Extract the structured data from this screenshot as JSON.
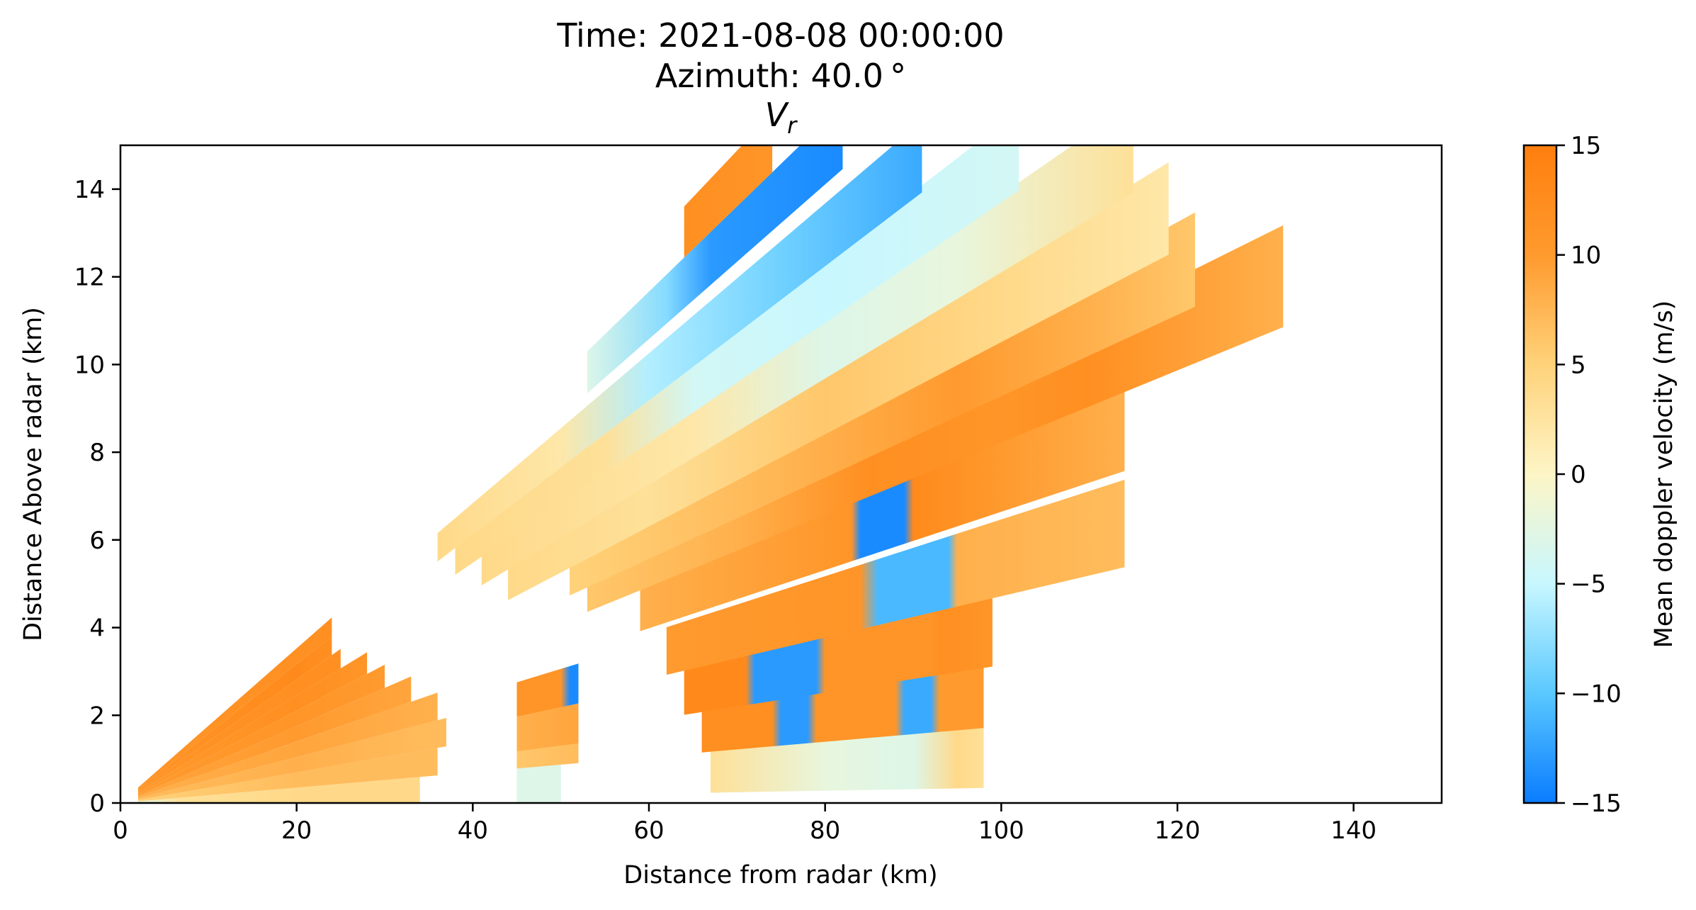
{
  "chart_data": {
    "type": "heatmap",
    "title_lines": [
      "Time: 2021-08-08 00:00:00",
      "Azimuth: 40.0 °",
      "V",
      "r"
    ],
    "xlabel": "Distance from radar (km)",
    "ylabel": "Distance Above radar  (km)",
    "xlim": [
      0,
      150
    ],
    "ylim": [
      0,
      15
    ],
    "xticks": [
      0,
      20,
      40,
      60,
      80,
      100,
      120,
      140
    ],
    "yticks": [
      0,
      2,
      4,
      6,
      8,
      10,
      12,
      14
    ],
    "xtick_labels": [
      "0",
      "20",
      "40",
      "60",
      "80",
      "100",
      "120",
      "140"
    ],
    "ytick_labels": [
      "0",
      "2",
      "4",
      "6",
      "8",
      "10",
      "12",
      "14"
    ],
    "colorbar": {
      "label": "Mean doppler velocity (m/s)",
      "vmin": -15,
      "vmax": 15,
      "ticks": [
        15,
        10,
        5,
        0,
        -5,
        -10,
        -15
      ],
      "tick_labels": [
        "15",
        "10",
        "5",
        "0",
        "−5",
        "−10",
        "−15"
      ],
      "colors": [
        "#0a7cff",
        "#5ac8ff",
        "#c8f7ff",
        "#fdf5c6",
        "#ffd27a",
        "#ff9a2e",
        "#ff7f0e"
      ]
    },
    "sweeps": [
      {
        "elev": 0.5,
        "r0": 2,
        "r1": 34,
        "segments": [
          [
            0,
            -3
          ],
          [
            7,
            3
          ],
          [
            20,
            4
          ],
          [
            34,
            4
          ]
        ]
      },
      {
        "elev": 1.5,
        "r0": 2,
        "r1": 36,
        "segments": [
          [
            0,
            5
          ],
          [
            20,
            7
          ],
          [
            36,
            7
          ]
        ]
      },
      {
        "elev": 2.5,
        "r0": 2,
        "r1": 37,
        "segments": [
          [
            0,
            7
          ],
          [
            20,
            8
          ],
          [
            37,
            7
          ]
        ]
      },
      {
        "elev": 3.5,
        "r0": 2,
        "r1": 36,
        "segments": [
          [
            0,
            8
          ],
          [
            20,
            9
          ],
          [
            36,
            8
          ]
        ]
      },
      {
        "elev": 4.5,
        "r0": 2,
        "r1": 33,
        "segments": [
          [
            0,
            9
          ],
          [
            20,
            10
          ],
          [
            33,
            9
          ]
        ]
      },
      {
        "elev": 5.5,
        "r0": 2,
        "r1": 30,
        "segments": [
          [
            0,
            10
          ],
          [
            20,
            11
          ],
          [
            30,
            10
          ]
        ]
      },
      {
        "elev": 6.5,
        "r0": 2,
        "r1": 28,
        "segments": [
          [
            0,
            10
          ],
          [
            20,
            12
          ],
          [
            28,
            11
          ]
        ]
      },
      {
        "elev": 7.5,
        "r0": 2,
        "r1": 25,
        "segments": [
          [
            0,
            11
          ],
          [
            20,
            12
          ],
          [
            25,
            12
          ]
        ]
      },
      {
        "elev": 8.5,
        "r0": 2,
        "r1": 24,
        "segments": [
          [
            0,
            11
          ],
          [
            20,
            13
          ],
          [
            24,
            12
          ]
        ]
      },
      {
        "elev": 9.5,
        "r0": 2,
        "r1": 24,
        "segments": [
          [
            0,
            11
          ],
          [
            24,
            12
          ]
        ]
      },
      {
        "elev": 0.5,
        "r0": 45,
        "r1": 50,
        "segments": [
          [
            45,
            -3
          ],
          [
            50,
            -3
          ]
        ]
      },
      {
        "elev": 1.5,
        "r0": 45,
        "r1": 52,
        "segments": [
          [
            45,
            6
          ],
          [
            52,
            7
          ]
        ]
      },
      {
        "elev": 2.0,
        "r0": 45,
        "r1": 52,
        "segments": [
          [
            45,
            8
          ],
          [
            52,
            9
          ]
        ]
      },
      {
        "elev": 3.0,
        "r0": 45,
        "r1": 52,
        "segments": [
          [
            45,
            11
          ],
          [
            50,
            11
          ],
          [
            51,
            -14
          ],
          [
            52,
            -14
          ]
        ]
      },
      {
        "elev": 0.7,
        "r0": 67,
        "r1": 98,
        "segments": [
          [
            67,
            3
          ],
          [
            80,
            -2
          ],
          [
            90,
            -3
          ],
          [
            95,
            4
          ],
          [
            98,
            3
          ]
        ]
      },
      {
        "elev": 1.5,
        "r0": 66,
        "r1": 98,
        "segments": [
          [
            66,
            12
          ],
          [
            74,
            12
          ],
          [
            75,
            -13
          ],
          [
            78,
            -13
          ],
          [
            79,
            11
          ],
          [
            88,
            11
          ],
          [
            89,
            -12
          ],
          [
            92,
            -12
          ],
          [
            93,
            10
          ],
          [
            98,
            10
          ]
        ]
      },
      {
        "elev": 2.3,
        "r0": 64,
        "r1": 99,
        "segments": [
          [
            64,
            13
          ],
          [
            71,
            13
          ],
          [
            72,
            -13
          ],
          [
            79,
            -13
          ],
          [
            80,
            11
          ],
          [
            92,
            11
          ],
          [
            93,
            12
          ],
          [
            99,
            11
          ]
        ]
      },
      {
        "elev": 3.2,
        "r0": 62,
        "r1": 114,
        "segments": [
          [
            62,
            10
          ],
          [
            84,
            11
          ],
          [
            86,
            -11
          ],
          [
            94,
            -11
          ],
          [
            95,
            8
          ],
          [
            114,
            7
          ]
        ]
      },
      {
        "elev": 4.3,
        "r0": 59,
        "r1": 114,
        "segments": [
          [
            59,
            8
          ],
          [
            83,
            11
          ],
          [
            84,
            -14
          ],
          [
            89,
            -14
          ],
          [
            90,
            13
          ],
          [
            100,
            10
          ],
          [
            114,
            8
          ]
        ]
      },
      {
        "elev": 5.2,
        "r0": 53,
        "r1": 132,
        "segments": [
          [
            53,
            6
          ],
          [
            70,
            8
          ],
          [
            85,
            12
          ],
          [
            100,
            11
          ],
          [
            110,
            12
          ],
          [
            132,
            8
          ]
        ]
      },
      {
        "elev": 5.8,
        "r0": 51,
        "r1": 122,
        "segments": [
          [
            51,
            5
          ],
          [
            70,
            7
          ],
          [
            95,
            10
          ],
          [
            110,
            8
          ],
          [
            122,
            6
          ]
        ]
      },
      {
        "elev": 6.5,
        "r0": 44,
        "r1": 119,
        "segments": [
          [
            44,
            4
          ],
          [
            60,
            3
          ],
          [
            80,
            6
          ],
          [
            100,
            4
          ],
          [
            119,
            2
          ]
        ]
      },
      {
        "elev": 7.4,
        "r0": 41,
        "r1": 115,
        "segments": [
          [
            41,
            4
          ],
          [
            65,
            2
          ],
          [
            80,
            -3
          ],
          [
            95,
            -2
          ],
          [
            115,
            3
          ]
        ]
      },
      {
        "elev": 8.3,
        "r0": 38,
        "r1": 102,
        "segments": [
          [
            38,
            4
          ],
          [
            55,
            3
          ],
          [
            65,
            -4
          ],
          [
            80,
            -5
          ],
          [
            102,
            -4
          ]
        ]
      },
      {
        "elev": 9.2,
        "r0": 36,
        "r1": 91,
        "segments": [
          [
            36,
            4
          ],
          [
            50,
            2
          ],
          [
            60,
            -6
          ],
          [
            75,
            -9
          ],
          [
            91,
            -12
          ]
        ]
      },
      {
        "elev": 10.5,
        "r0": 53,
        "r1": 82,
        "segments": [
          [
            53,
            -3
          ],
          [
            62,
            -8
          ],
          [
            67,
            -13
          ],
          [
            82,
            -14
          ]
        ]
      },
      {
        "elev": 11.5,
        "r0": 64,
        "r1": 74,
        "segments": [
          [
            64,
            12
          ],
          [
            74,
            11
          ]
        ]
      }
    ]
  }
}
